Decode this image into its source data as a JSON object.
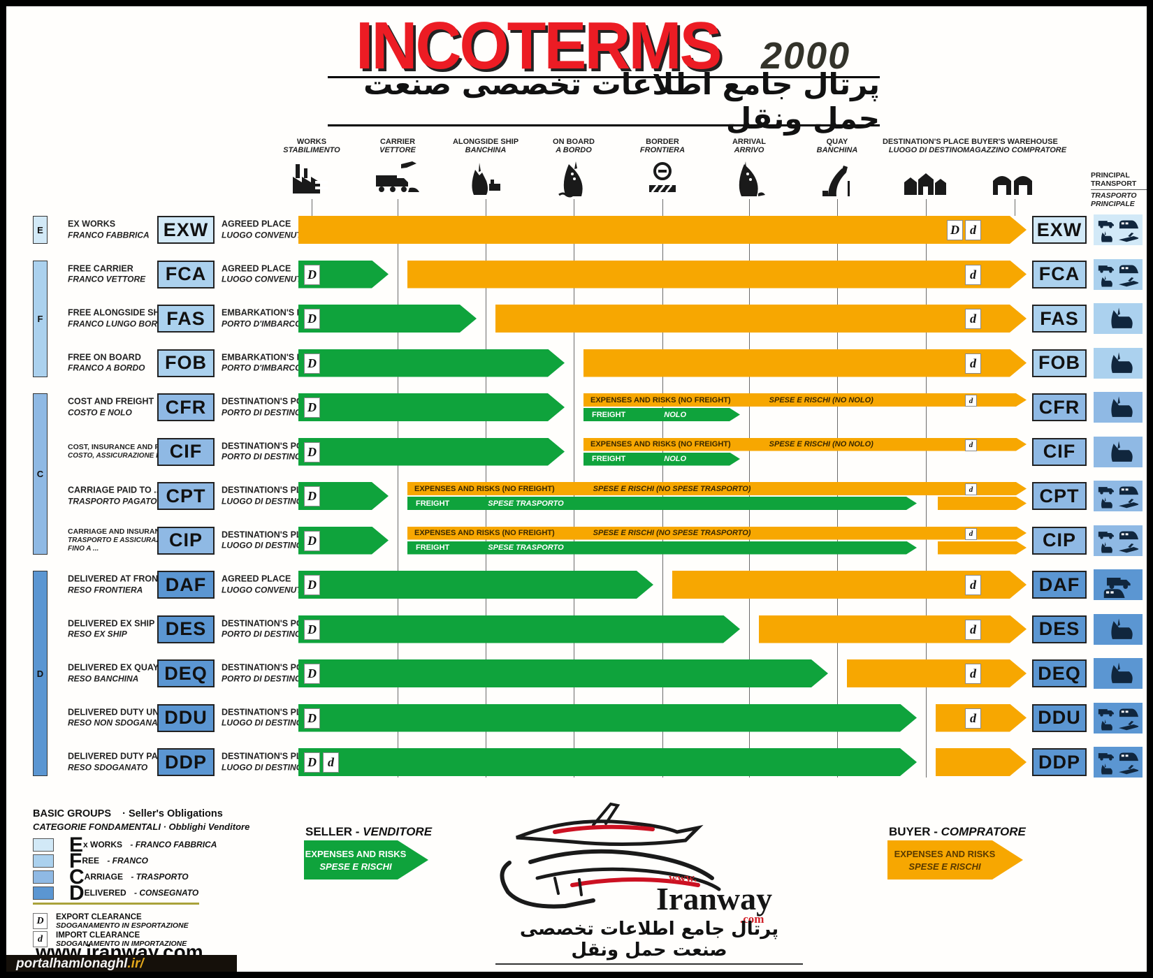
{
  "header": {
    "title": "INCOTERMS",
    "year": "2000",
    "subtitle_fa": "پرتال جامع اطلاعات تخصصی صنعت حمل ونقل"
  },
  "principal_transport": {
    "en": "PRINCIPAL TRANSPORT",
    "it": "TRASPORTO PRINCIPALE"
  },
  "columns": [
    {
      "en": "WORKS",
      "it": "STABILIMENTO",
      "icon": "factory-icon"
    },
    {
      "en": "CARRIER",
      "it": "VETTORE",
      "icon": "carrier-icon"
    },
    {
      "en": "ALONGSIDE SHIP",
      "it": "BANCHINA",
      "icon": "ship-dock-icon"
    },
    {
      "en": "ON BOARD",
      "it": "A BORDO",
      "icon": "ship-bow-icon"
    },
    {
      "en": "BORDER",
      "it": "FRONTIERA",
      "icon": "border-icon"
    },
    {
      "en": "ARRIVAL",
      "it": "ARRIVO",
      "icon": "ship-arrival-icon"
    },
    {
      "en": "QUAY",
      "it": "BANCHINA",
      "icon": "quay-icon"
    },
    {
      "en": "DESTINATION'S PLACE",
      "it": "LUOGO DI DESTINO",
      "icon": "destination-icon"
    },
    {
      "en": "BUYER'S WAREHOUSE",
      "it": "MAGAZZINO COMPRATORE",
      "icon": "warehouse-icon"
    }
  ],
  "colors": {
    "orange": "#f7a701",
    "green": "#0fa33c",
    "group_E": "#d2e9f7",
    "group_F": "#abd1ee",
    "group_C": "#8fb9e4",
    "group_D": "#5b96d2",
    "title_red": "#ec1c24"
  },
  "rows": [
    {
      "code": "EXW",
      "group": "E",
      "name_en": "EX WORKS",
      "name_it": "FRANCO FABBRICA",
      "place_en": "AGREED PLACE",
      "place_it": "LUOGO CONVENUTO",
      "transport": "all",
      "bar": {
        "type": "full_orange",
        "right_marks": [
          "D",
          "d"
        ]
      }
    },
    {
      "code": "FCA",
      "group": "F",
      "name_en": "FREE CARRIER",
      "name_it": "FRANCO VETTORE",
      "place_en": "AGREED PLACE",
      "place_it": "LUOGO CONVENUTO",
      "transport": "all",
      "bar": {
        "type": "handover",
        "at": "carrier",
        "left_marks": [
          "D"
        ],
        "right_marks": [
          "d"
        ]
      }
    },
    {
      "code": "FAS",
      "group": "F",
      "name_en": "FREE ALONGSIDE SHIP",
      "name_it": "FRANCO LUNGO BORDO",
      "place_en": "EMBARKATION'S PORT",
      "place_it": "PORTO D'IMBARCO",
      "transport": "ship",
      "bar": {
        "type": "handover",
        "at": "alongside",
        "left_marks": [
          "D"
        ],
        "right_marks": [
          "d"
        ]
      }
    },
    {
      "code": "FOB",
      "group": "F",
      "name_en": "FREE ON BOARD",
      "name_it": "FRANCO A BORDO",
      "place_en": "EMBARKATION'S PORT",
      "place_it": "PORTO D'IMBARCO",
      "transport": "ship",
      "bar": {
        "type": "handover",
        "at": "onboard",
        "left_marks": [
          "D"
        ],
        "right_marks": [
          "d"
        ]
      }
    },
    {
      "code": "CFR",
      "group": "C",
      "name_en": "COST AND FREIGHT",
      "name_it": "COSTO E NOLO",
      "place_en": "DESTINATION'S PORT",
      "place_it": "PORTO DI DESTINO",
      "transport": "ship",
      "bar": {
        "type": "split",
        "at": "onboard",
        "left_marks": [
          "D"
        ],
        "top_mark": "d",
        "top_label_en": "EXPENSES AND RISKS (NO FREIGHT)",
        "top_label_it": "SPESE  E RISCHI (NO NOLO)",
        "freight_en": "FREIGHT",
        "freight_it": "NOLO",
        "freight_to": "arrival",
        "tail_orange": false
      }
    },
    {
      "code": "CIF",
      "group": "C",
      "name_en": "COST, INSURANCE AND FREIGHT",
      "name_it": "COSTO, ASSICURAZIONE E NOLO",
      "place_en": "DESTINATION'S PORT",
      "place_it": "PORTO DI DESTINO",
      "transport": "ship",
      "bar": {
        "type": "split",
        "at": "onboard",
        "left_marks": [
          "D"
        ],
        "top_mark": "d",
        "top_label_en": "EXPENSES AND RISKS (NO FREIGHT)",
        "top_label_it": "SPESE  E RISCHI (NO NOLO)",
        "freight_en": "FREIGHT",
        "freight_it": "NOLO",
        "freight_to": "arrival",
        "tail_orange": false
      }
    },
    {
      "code": "CPT",
      "group": "C",
      "name_en": "CARRIAGE PAID TO ...",
      "name_it": "TRASPORTO PAGATO FINO A ...",
      "place_en": "DESTINATION'S PLACE",
      "place_it": "LUOGO DI DESTINO",
      "transport": "all",
      "bar": {
        "type": "split",
        "at": "carrier",
        "left_marks": [
          "D"
        ],
        "top_mark": "d",
        "top_label_en": "EXPENSES AND RISKS (NO FREIGHT)",
        "top_label_it": "SPESE  E RISCHI (NO SPESE TRASPORTO)",
        "freight_en": "FREIGHT",
        "freight_it": "SPESE TRASPORTO",
        "freight_to": "dest",
        "tail_orange": true
      }
    },
    {
      "code": "CIP",
      "group": "C",
      "name_en": "CARRIAGE AND INSURANCE PAID TO ...",
      "name_it": "TRASPORTO E ASSICURAZIONE PAGATI FINO A ...",
      "place_en": "DESTINATION'S PLACE",
      "place_it": "LUOGO DI DESTINO",
      "transport": "all",
      "bar": {
        "type": "split",
        "at": "carrier",
        "left_marks": [
          "D"
        ],
        "top_mark": "d",
        "top_label_en": "EXPENSES AND RISKS (NO FREIGHT)",
        "top_label_it": "SPESE  E RISCHI (NO SPESE TRASPORTO)",
        "freight_en": "FREIGHT",
        "freight_it": "SPESE TRASPORTO",
        "freight_to": "dest",
        "tail_orange": true
      }
    },
    {
      "code": "DAF",
      "group": "D",
      "name_en": "DELIVERED AT FRONTIER",
      "name_it": "RESO FRONTIERA",
      "place_en": "AGREED PLACE",
      "place_it": "LUOGO CONVENUTO",
      "transport": "land",
      "bar": {
        "type": "handover",
        "at": "border",
        "left_marks": [
          "D"
        ],
        "right_marks": [
          "d"
        ]
      }
    },
    {
      "code": "DES",
      "group": "D",
      "name_en": "DELIVERED EX SHIP",
      "name_it": "RESO EX SHIP",
      "place_en": "DESTINATION'S PORT",
      "place_it": "PORTO DI DESTINO",
      "transport": "ship",
      "bar": {
        "type": "handover",
        "at": "arrival",
        "left_marks": [
          "D"
        ],
        "right_marks": [
          "d"
        ]
      }
    },
    {
      "code": "DEQ",
      "group": "D",
      "name_en": "DELIVERED EX QUAY",
      "name_it": "RESO BANCHINA",
      "place_en": "DESTINATION'S PORT",
      "place_it": "PORTO DI DESTINO",
      "transport": "ship",
      "bar": {
        "type": "handover",
        "at": "quay",
        "left_marks": [
          "D"
        ],
        "right_marks": [
          "d"
        ]
      }
    },
    {
      "code": "DDU",
      "group": "D",
      "name_en": "DELIVERED DUTY UNPAID",
      "name_it": "RESO NON SDOGANATO",
      "place_en": "DESTINATION'S PLACE",
      "place_it": "LUOGO DI DESTINO",
      "transport": "all",
      "bar": {
        "type": "handover",
        "at": "dest",
        "left_marks": [
          "D"
        ],
        "right_marks": [
          "d"
        ]
      }
    },
    {
      "code": "DDP",
      "group": "D",
      "name_en": "DELIVERED DUTY PAID",
      "name_it": "RESO SDOGANATO",
      "place_en": "DESTINATION'S PLACE",
      "place_it": "LUOGO DI DESTINO",
      "transport": "all",
      "bar": {
        "type": "handover",
        "at": "dest",
        "left_marks": [
          "D",
          "d"
        ],
        "right_marks": []
      }
    }
  ],
  "basic_groups": {
    "title": "BASIC GROUPS",
    "subtitle": "· Seller's Obligations",
    "title_it": "CATEGORIE FONDAMENTALI · Obblighi Venditore",
    "items": [
      {
        "letter": "E",
        "rest": "x WORKS",
        "it": "- FRANCO FABBRICA",
        "group": "E"
      },
      {
        "letter": "F",
        "rest": "REE",
        "it": "- FRANCO",
        "group": "F"
      },
      {
        "letter": "C",
        "rest": "ARRIAGE",
        "it": "- TRASPORTO",
        "group": "C"
      },
      {
        "letter": "D",
        "rest": "ELIVERED",
        "it": "- CONSEGNATO",
        "group": "D"
      }
    ]
  },
  "clearance": [
    {
      "mark": "D",
      "en": "EXPORT CLEARANCE",
      "it": "SDOGANAMENTO IN ESPORTAZIONE"
    },
    {
      "mark": "d",
      "en": "IMPORT CLEARANCE",
      "it": "SDOGANAMENTO IN IMPORTAZIONE"
    }
  ],
  "seller_legend": {
    "title_en": "SELLER",
    "title_it": "VENDITORE",
    "line1": "EXPENSES AND RISKS",
    "line2": "SPESE  E RISCHI"
  },
  "buyer_legend": {
    "title_en": "BUYER",
    "title_it": "COMPRATORE",
    "line1": "EXPENSES AND RISKS",
    "line2": "SPESE  E RISCHI"
  },
  "website": "www.iranway.com",
  "logo": {
    "www": "www.",
    "name": "Iranway",
    "com": ".com",
    "caption_fa": "پرتال جامع اطلاعات تخصصی صنعت حمل ونقل"
  },
  "footer": {
    "tag": "portalhamlonaghl",
    "tag_suffix": ".ir/"
  }
}
